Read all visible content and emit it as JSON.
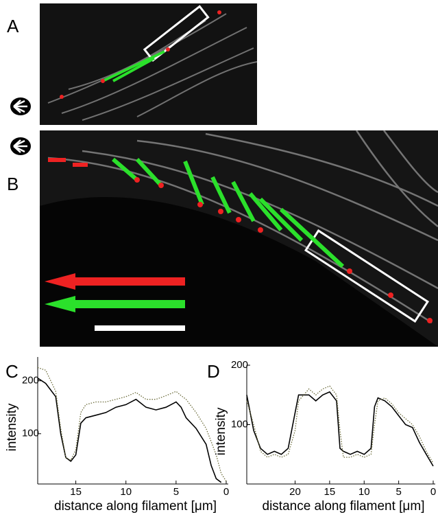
{
  "panel_labels": [
    "A",
    "B",
    "C",
    "D"
  ],
  "chart_data": [
    {
      "type": "line",
      "y_label": "intensity",
      "x_label": "distance along filament [μm]",
      "x": [
        18.8,
        18,
        17,
        16.5,
        16,
        15.5,
        15,
        14.5,
        14,
        13,
        12,
        11,
        10,
        9,
        8,
        7,
        6,
        5,
        4.5,
        4,
        3,
        2,
        1.5,
        1,
        0.5,
        0
      ],
      "series": [
        {
          "color": "#000000",
          "dash": "solid",
          "values": [
            205,
            195,
            170,
            100,
            55,
            48,
            60,
            120,
            130,
            135,
            140,
            150,
            155,
            165,
            150,
            145,
            150,
            160,
            150,
            130,
            110,
            80,
            40,
            15,
            8,
            null
          ]
        },
        {
          "color": "#6b6b3a",
          "dash": "dotted",
          "values": [
            225,
            220,
            180,
            110,
            55,
            50,
            70,
            140,
            155,
            160,
            160,
            165,
            170,
            178,
            165,
            165,
            172,
            180,
            172,
            165,
            140,
            110,
            85,
            60,
            25,
            10
          ]
        }
      ],
      "xlim": [
        18.8,
        0
      ],
      "ylim": [
        5,
        245
      ],
      "xticks": [
        15,
        10,
        5,
        0
      ],
      "yticks": [
        100,
        200
      ]
    },
    {
      "type": "line",
      "y_label": "intensity",
      "x_label": "distance along filament [μm]",
      "x": [
        27,
        26,
        25,
        24,
        23,
        22,
        21,
        20,
        19.5,
        18,
        17,
        16,
        15,
        14,
        13.5,
        13,
        12,
        11,
        10,
        9,
        8.5,
        8,
        7,
        6,
        5,
        4,
        3,
        2,
        1,
        0
      ],
      "series": [
        {
          "color": "#000000",
          "dash": "solid",
          "values": [
            150,
            90,
            60,
            50,
            55,
            50,
            60,
            120,
            150,
            150,
            140,
            150,
            155,
            140,
            60,
            55,
            50,
            55,
            50,
            60,
            130,
            145,
            140,
            130,
            115,
            100,
            95,
            70,
            50,
            30
          ]
        },
        {
          "color": "#6b6b3a",
          "dash": "dotted",
          "values": [
            140,
            100,
            55,
            45,
            50,
            45,
            50,
            90,
            140,
            160,
            150,
            160,
            165,
            150,
            90,
            45,
            45,
            50,
            45,
            50,
            100,
            140,
            145,
            135,
            120,
            110,
            100,
            80,
            55,
            35
          ]
        }
      ],
      "xlim": [
        27,
        0
      ],
      "ylim": [
        0,
        200
      ],
      "xticks": [
        20,
        15,
        10,
        5,
        0
      ],
      "yticks": [
        100,
        200
      ]
    }
  ]
}
